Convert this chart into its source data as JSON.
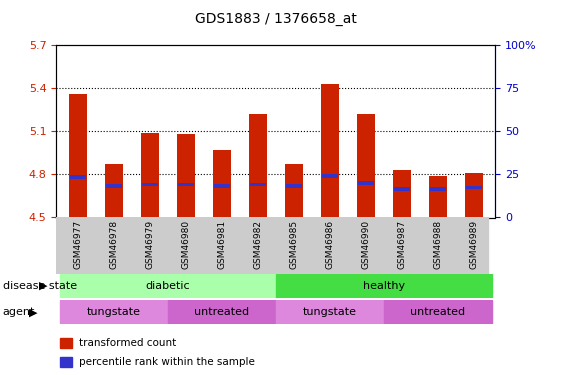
{
  "title": "GDS1883 / 1376658_at",
  "samples": [
    "GSM46977",
    "GSM46978",
    "GSM46979",
    "GSM46980",
    "GSM46981",
    "GSM46982",
    "GSM46985",
    "GSM46986",
    "GSM46990",
    "GSM46987",
    "GSM46988",
    "GSM46989"
  ],
  "transformed_count": [
    5.36,
    4.87,
    5.09,
    5.08,
    4.97,
    5.22,
    4.87,
    5.43,
    5.22,
    4.83,
    4.79,
    4.81
  ],
  "percentile_rank": [
    4.78,
    4.72,
    4.73,
    4.73,
    4.72,
    4.73,
    4.72,
    4.79,
    4.74,
    4.7,
    4.7,
    4.71
  ],
  "ymin": 4.5,
  "ymax": 5.7,
  "yticks": [
    4.5,
    4.8,
    5.1,
    5.4,
    5.7
  ],
  "ytick_labels": [
    "4.5",
    "4.8",
    "5.1",
    "5.4",
    "5.7"
  ],
  "y2ticks": [
    0,
    25,
    50,
    75,
    100
  ],
  "y2tick_labels": [
    "0",
    "25",
    "50",
    "75",
    "100%"
  ],
  "bar_color": "#cc2200",
  "percentile_color": "#3333cc",
  "left_tick_color": "#cc2200",
  "right_tick_color": "#0000cc",
  "disease_state_groups": [
    {
      "label": "diabetic",
      "start": 0,
      "end": 6,
      "color": "#aaffaa"
    },
    {
      "label": "healthy",
      "start": 6,
      "end": 12,
      "color": "#44dd44"
    }
  ],
  "agent_groups": [
    {
      "label": "tungstate",
      "start": 0,
      "end": 3,
      "color": "#dd88dd"
    },
    {
      "label": "untreated",
      "start": 3,
      "end": 6,
      "color": "#cc66cc"
    },
    {
      "label": "tungstate",
      "start": 6,
      "end": 9,
      "color": "#dd88dd"
    },
    {
      "label": "untreated",
      "start": 9,
      "end": 12,
      "color": "#cc66cc"
    }
  ],
  "legend_items": [
    {
      "label": "transformed count",
      "color": "#cc2200"
    },
    {
      "label": "percentile rank within the sample",
      "color": "#3333cc"
    }
  ],
  "bar_width": 0.5,
  "disease_label": "disease state",
  "agent_label": "agent"
}
